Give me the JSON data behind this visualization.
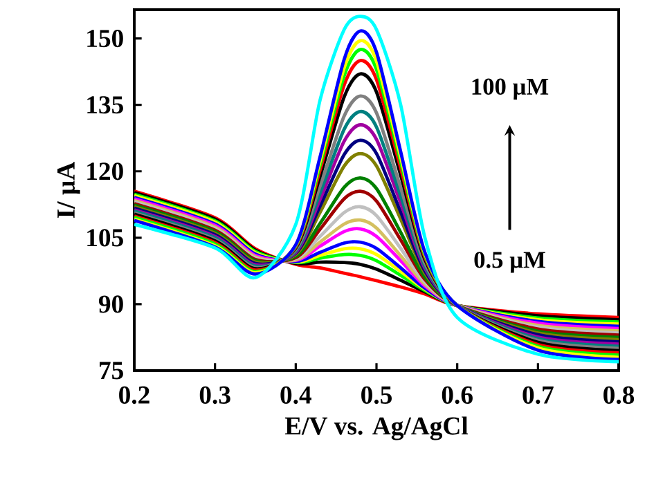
{
  "chart_data": {
    "type": "line",
    "xlabel": "E/V vs. Ag/AgCl",
    "ylabel": "I/ µA",
    "x": [
      0.2,
      0.3,
      0.35,
      0.4,
      0.43,
      0.46,
      0.48,
      0.5,
      0.53,
      0.56,
      0.6,
      0.7,
      0.8
    ],
    "series": [
      {
        "color": "#ff0000",
        "values": [
          115.5,
          109.5,
          102.5,
          99,
          98.2,
          97,
          96.2,
          95.3,
          93.9,
          92.3,
          89.7,
          87.8,
          87
        ]
      },
      {
        "color": "#000000",
        "values": [
          115.2,
          109.2,
          102.2,
          99.2,
          99.5,
          99.4,
          99,
          97.9,
          95.4,
          92.8,
          89.7,
          87.4,
          86.5
        ]
      },
      {
        "color": "#00ff00",
        "values": [
          114.8,
          108.8,
          101.9,
          99.4,
          100.4,
          101.2,
          101,
          99.8,
          96.5,
          93.1,
          89.7,
          86.9,
          86
        ]
      },
      {
        "color": "#ffff00",
        "values": [
          114.5,
          108.5,
          101.6,
          99.5,
          101,
          102.5,
          102.5,
          101.2,
          97.4,
          93.4,
          89.7,
          86.5,
          85.5
        ]
      },
      {
        "color": "#0000ff",
        "values": [
          114.1,
          108.1,
          101.3,
          99.6,
          101.7,
          103.8,
          104,
          102.6,
          98.2,
          93.6,
          89.7,
          86.1,
          85
        ]
      },
      {
        "color": "#ff00ff",
        "values": [
          113.8,
          107.8,
          101,
          99.9,
          103.1,
          106.4,
          107,
          105.3,
          99.8,
          94.1,
          89.7,
          85.7,
          84.5
        ]
      },
      {
        "color": "#d4c060",
        "values": [
          113.4,
          107.4,
          100.7,
          100,
          104,
          108.1,
          109,
          107.2,
          100.9,
          94.5,
          89.7,
          85.2,
          84
        ]
      },
      {
        "color": "#c0c0c0",
        "values": [
          113.1,
          107.1,
          100.4,
          100.3,
          105.3,
          110.7,
          112,
          110,
          102.6,
          95,
          89.7,
          84.8,
          83.5
        ]
      },
      {
        "color": "#a00000",
        "values": [
          112.7,
          106.7,
          100.1,
          100.5,
          106.9,
          113.8,
          115.5,
          113.3,
          104.5,
          95.6,
          89.7,
          84.4,
          83
        ]
      },
      {
        "color": "#008000",
        "values": [
          112.4,
          106.4,
          99.8,
          100.8,
          108.2,
          116.4,
          118.5,
          116.1,
          106.2,
          96.1,
          89.7,
          83.9,
          82.5
        ]
      },
      {
        "color": "#808000",
        "values": [
          112,
          106,
          99.5,
          101.2,
          110.7,
          121.2,
          124,
          121.2,
          109.2,
          97,
          89.7,
          83.5,
          82
        ]
      },
      {
        "color": "#000080",
        "values": [
          111.7,
          105.7,
          99.2,
          101.5,
          112.1,
          123.8,
          127,
          124,
          110.8,
          97.5,
          89.7,
          83.1,
          81.5
        ]
      },
      {
        "color": "#a000a0",
        "values": [
          111.3,
          105.3,
          98.9,
          101.7,
          113.6,
          126.8,
          130.5,
          127.2,
          112.8,
          98.1,
          89.7,
          82.6,
          81
        ]
      },
      {
        "color": "#008080",
        "values": [
          111,
          105,
          98.6,
          102,
          115,
          129.5,
          133.5,
          130,
          114.4,
          98.6,
          89.7,
          82.2,
          80.5
        ]
      },
      {
        "color": "#808080",
        "values": [
          110.6,
          104.6,
          98.3,
          102.3,
          116.6,
          132.5,
          137,
          133.2,
          116.3,
          99.2,
          89.7,
          81.8,
          80
        ]
      },
      {
        "color": "#000000",
        "values": [
          110.3,
          104.3,
          98,
          102.7,
          118.8,
          136.8,
          142,
          137.9,
          119.1,
          100.1,
          89.7,
          81.4,
          79.5
        ]
      },
      {
        "color": "#ff0000",
        "values": [
          109.9,
          103.9,
          97.7,
          102.9,
          120.2,
          139.5,
          145,
          140.7,
          120.7,
          100.6,
          89.7,
          80.9,
          79
        ]
      },
      {
        "color": "#00ff00",
        "values": [
          109.6,
          103.6,
          97.4,
          103.1,
          121.3,
          141.6,
          147.5,
          143,
          122.1,
          101,
          89.7,
          80.5,
          78.5
        ]
      },
      {
        "color": "#ffff00",
        "values": [
          109.2,
          103.2,
          97.1,
          103.3,
          122.2,
          143.4,
          149.5,
          144.9,
          123.2,
          101.4,
          89.7,
          80.1,
          78
        ]
      },
      {
        "color": "#0000ff",
        "values": [
          108.9,
          102.9,
          96.8,
          103.4,
          123.2,
          145.3,
          151.7,
          146.9,
          124.4,
          101.7,
          89.7,
          79.6,
          77.5
        ]
      },
      {
        "color": "#00ffff",
        "values": [
          108,
          102.7,
          96,
          108,
          136,
          152,
          155,
          152,
          135,
          105,
          87,
          78.7,
          77
        ]
      }
    ],
    "annotations": [
      "100 µM",
      "0.5 µM"
    ],
    "xlim": [
      0.2,
      0.8
    ],
    "ylim": [
      75,
      156.5
    ],
    "xticks": [
      0.2,
      0.3,
      0.4,
      0.5,
      0.6,
      0.7,
      0.8
    ],
    "yticks": [
      75,
      90,
      105,
      120,
      135,
      150
    ],
    "grid": false,
    "marker": "none",
    "line_style": "solid"
  }
}
